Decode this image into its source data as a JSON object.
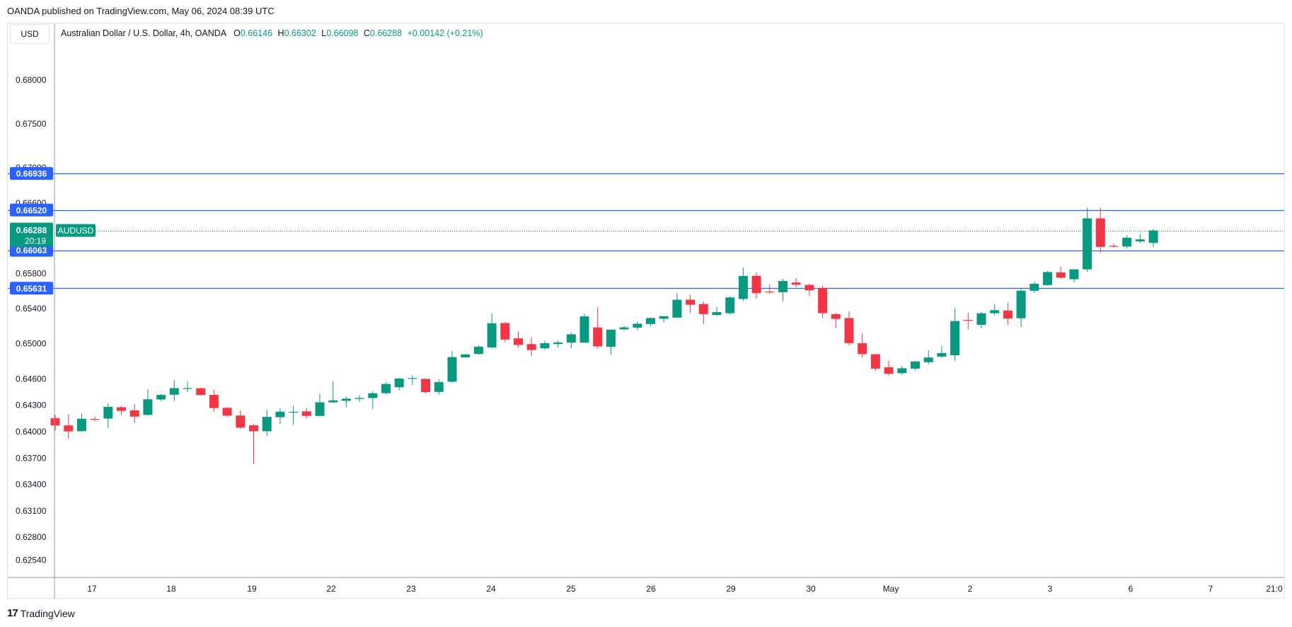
{
  "header": {
    "publisher_text": "OANDA published on TradingView.com, May 06, 2024 08:39 UTC"
  },
  "toolbar": {
    "currency_label": "USD"
  },
  "legend": {
    "symbol_text": "Australian Dollar / U.S. Dollar, 4h, OANDA",
    "o_label": "O",
    "o_value": "0.66146",
    "h_label": "H",
    "h_value": "0.66302",
    "l_label": "L",
    "l_value": "0.66098",
    "c_label": "C",
    "c_value": "0.66288",
    "change_text": "+0.00142 (+0.21%)"
  },
  "footer": {
    "brand": "TradingView",
    "logo_mark": "17"
  },
  "colors": {
    "up": "#089981",
    "down": "#f23645",
    "hline": "#2962ff",
    "grid": "#e0e3eb",
    "text": "#131722"
  },
  "chart_data": {
    "type": "candlestick",
    "symbol": "AUDUSD",
    "interval": "4h",
    "y_ticks": [
      "0.68000",
      "0.67500",
      "0.67000",
      "0.66600",
      "0.65800",
      "0.65400",
      "0.65000",
      "0.64600",
      "0.64300",
      "0.64000",
      "0.63700",
      "0.63400",
      "0.63100",
      "0.62800",
      "0.62540"
    ],
    "x_ticks": [
      "17",
      "18",
      "19",
      "22",
      "23",
      "24",
      "25",
      "26",
      "29",
      "30",
      "May",
      "2",
      "3",
      "6",
      "7",
      "21:0"
    ],
    "horizontal_lines": [
      0.66936,
      0.6652,
      0.66063,
      0.65631
    ],
    "price_labels": [
      "0.66936",
      "0.66520",
      "0.66063",
      "0.65631"
    ],
    "current_price": {
      "value": 0.66288,
      "value_text": "0.66288",
      "countdown": "20:19",
      "symbol_label": "AUDUSD"
    },
    "candles": [
      {
        "o": 0.64154,
        "h": 0.64191,
        "l": 0.64011,
        "c": 0.64071
      },
      {
        "o": 0.64071,
        "h": 0.64199,
        "l": 0.63922,
        "c": 0.64003
      },
      {
        "o": 0.64006,
        "h": 0.64207,
        "l": 0.63998,
        "c": 0.64147
      },
      {
        "o": 0.64145,
        "h": 0.64173,
        "l": 0.64116,
        "c": 0.6414
      },
      {
        "o": 0.64149,
        "h": 0.64323,
        "l": 0.64041,
        "c": 0.64283
      },
      {
        "o": 0.64278,
        "h": 0.64293,
        "l": 0.64188,
        "c": 0.64236
      },
      {
        "o": 0.64242,
        "h": 0.64314,
        "l": 0.64098,
        "c": 0.64171
      },
      {
        "o": 0.64191,
        "h": 0.64482,
        "l": 0.64183,
        "c": 0.64368
      },
      {
        "o": 0.64366,
        "h": 0.6443,
        "l": 0.64348,
        "c": 0.64418
      },
      {
        "o": 0.6442,
        "h": 0.6459,
        "l": 0.64347,
        "c": 0.64495
      },
      {
        "o": 0.64496,
        "h": 0.64571,
        "l": 0.64452,
        "c": 0.64496
      },
      {
        "o": 0.64494,
        "h": 0.64501,
        "l": 0.64412,
        "c": 0.64417
      },
      {
        "o": 0.64418,
        "h": 0.64475,
        "l": 0.6423,
        "c": 0.64268
      },
      {
        "o": 0.64271,
        "h": 0.6428,
        "l": 0.64164,
        "c": 0.64182
      },
      {
        "o": 0.64184,
        "h": 0.64243,
        "l": 0.64029,
        "c": 0.64046
      },
      {
        "o": 0.64072,
        "h": 0.64088,
        "l": 0.63634,
        "c": 0.64005
      },
      {
        "o": 0.64005,
        "h": 0.64252,
        "l": 0.63948,
        "c": 0.64168
      },
      {
        "o": 0.64165,
        "h": 0.6427,
        "l": 0.64088,
        "c": 0.64227
      },
      {
        "o": 0.64224,
        "h": 0.64295,
        "l": 0.64076,
        "c": 0.64226
      },
      {
        "o": 0.64231,
        "h": 0.64268,
        "l": 0.64149,
        "c": 0.64179
      },
      {
        "o": 0.64179,
        "h": 0.64431,
        "l": 0.64176,
        "c": 0.64334
      },
      {
        "o": 0.64333,
        "h": 0.64575,
        "l": 0.64328,
        "c": 0.64356
      },
      {
        "o": 0.64351,
        "h": 0.64398,
        "l": 0.6428,
        "c": 0.64375
      },
      {
        "o": 0.64372,
        "h": 0.64416,
        "l": 0.64336,
        "c": 0.64383
      },
      {
        "o": 0.64383,
        "h": 0.64462,
        "l": 0.64256,
        "c": 0.64437
      },
      {
        "o": 0.64438,
        "h": 0.64561,
        "l": 0.64422,
        "c": 0.64542
      },
      {
        "o": 0.64505,
        "h": 0.64615,
        "l": 0.6447,
        "c": 0.64604
      },
      {
        "o": 0.64608,
        "h": 0.64642,
        "l": 0.6453,
        "c": 0.6461
      },
      {
        "o": 0.646,
        "h": 0.64605,
        "l": 0.64434,
        "c": 0.6445
      },
      {
        "o": 0.64452,
        "h": 0.64599,
        "l": 0.64422,
        "c": 0.64564
      },
      {
        "o": 0.64568,
        "h": 0.64917,
        "l": 0.64555,
        "c": 0.64848
      },
      {
        "o": 0.64845,
        "h": 0.64881,
        "l": 0.64843,
        "c": 0.64879
      },
      {
        "o": 0.64883,
        "h": 0.64983,
        "l": 0.64877,
        "c": 0.64966
      },
      {
        "o": 0.64958,
        "h": 0.65342,
        "l": 0.64947,
        "c": 0.65233
      },
      {
        "o": 0.65235,
        "h": 0.65246,
        "l": 0.65018,
        "c": 0.65047
      },
      {
        "o": 0.65061,
        "h": 0.65141,
        "l": 0.64955,
        "c": 0.64986
      },
      {
        "o": 0.64996,
        "h": 0.65071,
        "l": 0.64858,
        "c": 0.64929
      },
      {
        "o": 0.64948,
        "h": 0.65031,
        "l": 0.64929,
        "c": 0.65006
      },
      {
        "o": 0.64996,
        "h": 0.65037,
        "l": 0.64957,
        "c": 0.65014
      },
      {
        "o": 0.65013,
        "h": 0.65129,
        "l": 0.64945,
        "c": 0.65107
      },
      {
        "o": 0.65012,
        "h": 0.65339,
        "l": 0.65011,
        "c": 0.65311
      },
      {
        "o": 0.65185,
        "h": 0.65413,
        "l": 0.64944,
        "c": 0.64969
      },
      {
        "o": 0.64966,
        "h": 0.65161,
        "l": 0.64874,
        "c": 0.6516
      },
      {
        "o": 0.65163,
        "h": 0.65202,
        "l": 0.65152,
        "c": 0.65186
      },
      {
        "o": 0.65183,
        "h": 0.65254,
        "l": 0.65154,
        "c": 0.65227
      },
      {
        "o": 0.65224,
        "h": 0.653,
        "l": 0.65201,
        "c": 0.65292
      },
      {
        "o": 0.65284,
        "h": 0.65314,
        "l": 0.65241,
        "c": 0.65313
      },
      {
        "o": 0.65297,
        "h": 0.6558,
        "l": 0.65295,
        "c": 0.655
      },
      {
        "o": 0.65501,
        "h": 0.65556,
        "l": 0.6535,
        "c": 0.65443
      },
      {
        "o": 0.65451,
        "h": 0.65483,
        "l": 0.65222,
        "c": 0.65337
      },
      {
        "o": 0.65326,
        "h": 0.65418,
        "l": 0.65319,
        "c": 0.65359
      },
      {
        "o": 0.65347,
        "h": 0.65539,
        "l": 0.65332,
        "c": 0.65526
      },
      {
        "o": 0.65509,
        "h": 0.65865,
        "l": 0.65485,
        "c": 0.65771
      },
      {
        "o": 0.65771,
        "h": 0.65813,
        "l": 0.65512,
        "c": 0.65575
      },
      {
        "o": 0.65592,
        "h": 0.65677,
        "l": 0.65568,
        "c": 0.6559
      },
      {
        "o": 0.65586,
        "h": 0.65737,
        "l": 0.65483,
        "c": 0.65713
      },
      {
        "o": 0.65696,
        "h": 0.65746,
        "l": 0.65643,
        "c": 0.65671
      },
      {
        "o": 0.65669,
        "h": 0.65682,
        "l": 0.65542,
        "c": 0.65608
      },
      {
        "o": 0.65634,
        "h": 0.65656,
        "l": 0.65293,
        "c": 0.65348
      },
      {
        "o": 0.65336,
        "h": 0.65352,
        "l": 0.65173,
        "c": 0.65282
      },
      {
        "o": 0.65292,
        "h": 0.65367,
        "l": 0.64979,
        "c": 0.65007
      },
      {
        "o": 0.65006,
        "h": 0.65117,
        "l": 0.64844,
        "c": 0.64882
      },
      {
        "o": 0.6488,
        "h": 0.64885,
        "l": 0.64694,
        "c": 0.64717
      },
      {
        "o": 0.64732,
        "h": 0.64811,
        "l": 0.64638,
        "c": 0.64658
      },
      {
        "o": 0.64665,
        "h": 0.6475,
        "l": 0.64646,
        "c": 0.64721
      },
      {
        "o": 0.64717,
        "h": 0.64803,
        "l": 0.64699,
        "c": 0.64798
      },
      {
        "o": 0.6479,
        "h": 0.64927,
        "l": 0.64766,
        "c": 0.64843
      },
      {
        "o": 0.64854,
        "h": 0.64971,
        "l": 0.6484,
        "c": 0.64894
      },
      {
        "o": 0.64869,
        "h": 0.65401,
        "l": 0.64808,
        "c": 0.65258
      },
      {
        "o": 0.65271,
        "h": 0.65354,
        "l": 0.65161,
        "c": 0.6527
      },
      {
        "o": 0.65214,
        "h": 0.65363,
        "l": 0.65177,
        "c": 0.65346
      },
      {
        "o": 0.65347,
        "h": 0.65449,
        "l": 0.65323,
        "c": 0.65382
      },
      {
        "o": 0.65377,
        "h": 0.65468,
        "l": 0.65215,
        "c": 0.65286
      },
      {
        "o": 0.6529,
        "h": 0.65636,
        "l": 0.6519,
        "c": 0.65603
      },
      {
        "o": 0.65602,
        "h": 0.65709,
        "l": 0.6558,
        "c": 0.65682
      },
      {
        "o": 0.65667,
        "h": 0.65826,
        "l": 0.65659,
        "c": 0.65815
      },
      {
        "o": 0.65811,
        "h": 0.65875,
        "l": 0.65739,
        "c": 0.65751
      },
      {
        "o": 0.65733,
        "h": 0.65846,
        "l": 0.65698,
        "c": 0.65846
      },
      {
        "o": 0.65846,
        "h": 0.66547,
        "l": 0.65816,
        "c": 0.66425
      },
      {
        "o": 0.66425,
        "h": 0.6655,
        "l": 0.66031,
        "c": 0.66101
      },
      {
        "o": 0.66112,
        "h": 0.6614,
        "l": 0.6609,
        "c": 0.66108
      },
      {
        "o": 0.66105,
        "h": 0.66235,
        "l": 0.6608,
        "c": 0.66206
      },
      {
        "o": 0.66164,
        "h": 0.66245,
        "l": 0.66145,
        "c": 0.66186
      },
      {
        "o": 0.66146,
        "h": 0.66302,
        "l": 0.66098,
        "c": 0.66288
      }
    ]
  }
}
